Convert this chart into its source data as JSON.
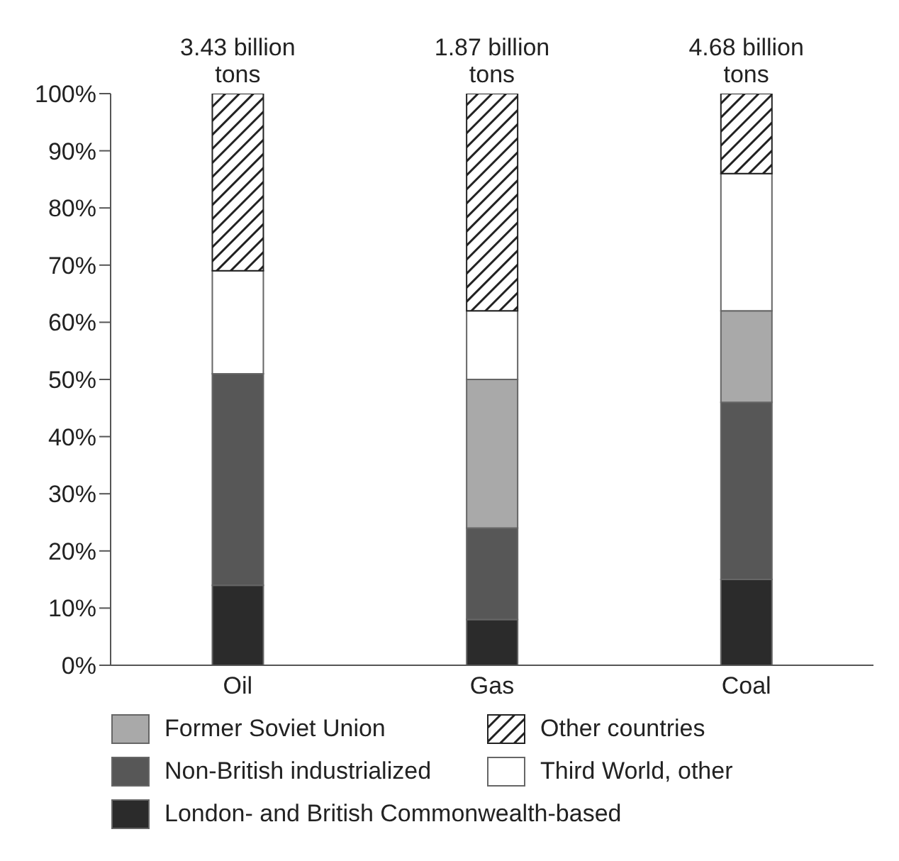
{
  "chart_data": {
    "type": "bar",
    "stacked": true,
    "categories": [
      "Oil",
      "Gas",
      "Coal"
    ],
    "series": [
      {
        "name": "London- and British Commonwealth-based",
        "color": "#2b2b2b",
        "values": [
          14,
          8,
          15
        ]
      },
      {
        "name": "Non-British industrialized",
        "color": "#575757",
        "values": [
          37,
          16,
          31
        ]
      },
      {
        "name": "Former Soviet Union",
        "color": "#a9a9a9",
        "values": [
          0,
          26,
          16
        ]
      },
      {
        "name": "Third World, other",
        "color": "#ffffff",
        "values": [
          18,
          12,
          24
        ]
      },
      {
        "name": "Other countries",
        "color": "#222222",
        "values": [
          31,
          38,
          14
        ]
      }
    ],
    "ylim": [
      0,
      100
    ],
    "yticks": [
      {
        "value": 0,
        "label": "0%"
      },
      {
        "value": 10,
        "label": "10%"
      },
      {
        "value": 20,
        "label": "20%"
      },
      {
        "value": 30,
        "label": "30%"
      },
      {
        "value": 40,
        "label": "40%"
      },
      {
        "value": 50,
        "label": "50%"
      },
      {
        "value": 60,
        "label": "60%"
      },
      {
        "value": 70,
        "label": "70%"
      },
      {
        "value": 80,
        "label": "80%"
      },
      {
        "value": 90,
        "label": "90%"
      },
      {
        "value": 100,
        "label": "100%"
      }
    ],
    "annotations": [
      {
        "text": "3.43 billion tons",
        "x": "Oil",
        "y": 100
      },
      {
        "text": "1.87 billion tons",
        "x": "Gas",
        "y": 100
      },
      {
        "text": "4.68 billion tons",
        "x": "Coal",
        "y": 100
      }
    ],
    "grid": false,
    "legend": "bottom"
  }
}
